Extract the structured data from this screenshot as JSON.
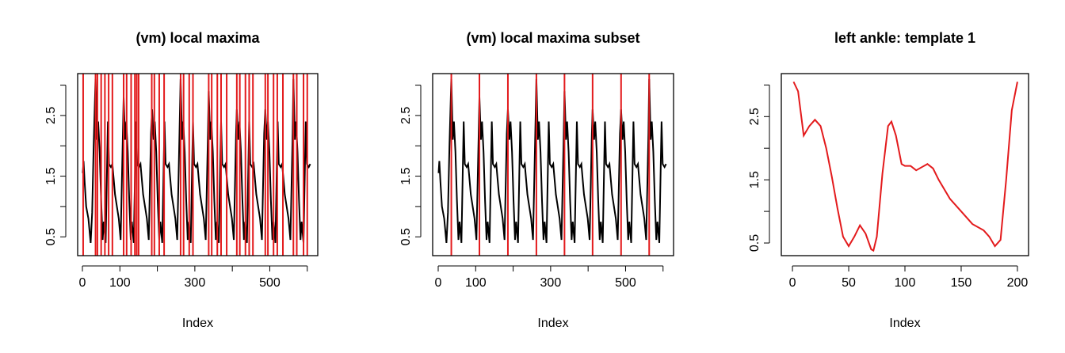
{
  "chart_data": [
    {
      "type": "line",
      "title": "(vm) local maxima",
      "xlabel": "Index",
      "color": "#000000",
      "x": [
        1,
        3,
        6,
        10,
        16,
        22,
        26,
        30,
        35,
        39,
        42,
        46,
        50,
        54,
        57,
        62,
        68,
        71,
        76,
        80,
        87,
        97,
        102,
        108,
        110,
        114,
        117,
        121,
        125,
        129,
        132,
        137,
        143,
        146,
        151,
        155,
        162,
        172,
        177,
        183,
        186,
        190,
        193,
        197,
        201,
        205,
        208,
        213,
        219,
        222,
        227,
        231,
        238,
        248,
        253,
        259,
        262,
        266,
        269,
        273,
        277,
        281,
        284,
        289,
        295,
        298,
        303,
        307,
        314,
        324,
        329,
        335,
        337,
        341,
        344,
        348,
        352,
        356,
        359,
        364,
        370,
        373,
        378,
        382,
        389,
        399,
        404,
        410,
        412,
        416,
        419,
        423,
        427,
        431,
        434,
        439,
        445,
        448,
        453,
        457,
        464,
        474,
        479,
        485,
        488,
        492,
        495,
        499,
        503,
        507,
        510,
        515,
        521,
        524,
        529,
        533,
        540,
        550,
        555,
        561,
        563,
        567,
        570,
        574,
        578,
        582,
        585,
        590,
        596,
        599,
        604,
        608
      ],
      "values": [
        1.55,
        1.75,
        1.4,
        1.0,
        0.8,
        0.4,
        0.9,
        2.0,
        3.1,
        2.1,
        2.4,
        1.9,
        1.1,
        0.45,
        0.75,
        0.4,
        2.4,
        1.7,
        1.65,
        1.7,
        1.2,
        0.8,
        0.45,
        2.2,
        2.8,
        2.1,
        2.4,
        1.9,
        1.1,
        0.45,
        0.75,
        0.4,
        2.4,
        1.7,
        1.65,
        1.7,
        1.2,
        0.8,
        0.45,
        2.2,
        2.6,
        2.1,
        2.4,
        1.9,
        1.1,
        0.45,
        0.75,
        0.4,
        2.4,
        1.7,
        1.65,
        1.7,
        1.2,
        0.8,
        0.45,
        2.2,
        3.1,
        2.1,
        2.4,
        1.9,
        1.1,
        0.45,
        0.75,
        0.4,
        2.4,
        1.7,
        1.65,
        1.7,
        1.2,
        0.8,
        0.45,
        2.2,
        2.9,
        2.1,
        2.4,
        1.9,
        1.1,
        0.45,
        0.75,
        0.4,
        2.4,
        1.7,
        1.65,
        1.7,
        1.2,
        0.8,
        0.45,
        2.2,
        2.6,
        2.1,
        2.4,
        1.9,
        1.1,
        0.45,
        0.75,
        0.4,
        2.4,
        1.7,
        1.65,
        1.7,
        1.2,
        0.8,
        0.45,
        2.2,
        2.6,
        2.1,
        2.4,
        1.9,
        1.1,
        0.45,
        0.75,
        0.4,
        2.4,
        1.7,
        1.65,
        1.7,
        1.2,
        0.8,
        0.45,
        2.2,
        3.1,
        2.1,
        2.4,
        1.9,
        1.1,
        0.45,
        0.75,
        0.4,
        2.4,
        1.7,
        1.65,
        1.7
      ],
      "xlim": [
        -12.7,
        628
      ],
      "ylim": [
        0.19,
        3.19
      ],
      "xticks": [
        0,
        100,
        300,
        500
      ],
      "xticks_minor": [
        200,
        400,
        600
      ],
      "yticks": [
        0.5,
        1.5,
        2.5
      ],
      "yticks_minor": [
        1,
        2,
        3
      ],
      "vlines": [
        2,
        35,
        40,
        50,
        60,
        70,
        80,
        110,
        118,
        130,
        140,
        145,
        150,
        185,
        192,
        205,
        218,
        262,
        270,
        285,
        295,
        337,
        345,
        360,
        370,
        385,
        412,
        420,
        435,
        445,
        455,
        488,
        495,
        510,
        520,
        535,
        563,
        572,
        590,
        600
      ],
      "vline_color": "#e31a1c"
    },
    {
      "type": "line",
      "title": "(vm) local maxima subset",
      "xlabel": "Index",
      "color": "#000000",
      "x": [
        1,
        3,
        6,
        10,
        16,
        22,
        26,
        30,
        35,
        39,
        42,
        46,
        50,
        54,
        57,
        62,
        68,
        71,
        76,
        80,
        87,
        97,
        102,
        108,
        110,
        114,
        117,
        121,
        125,
        129,
        132,
        137,
        143,
        146,
        151,
        155,
        162,
        172,
        177,
        183,
        186,
        190,
        193,
        197,
        201,
        205,
        208,
        213,
        219,
        222,
        227,
        231,
        238,
        248,
        253,
        259,
        262,
        266,
        269,
        273,
        277,
        281,
        284,
        289,
        295,
        298,
        303,
        307,
        314,
        324,
        329,
        335,
        337,
        341,
        344,
        348,
        352,
        356,
        359,
        364,
        370,
        373,
        378,
        382,
        389,
        399,
        404,
        410,
        412,
        416,
        419,
        423,
        427,
        431,
        434,
        439,
        445,
        448,
        453,
        457,
        464,
        474,
        479,
        485,
        488,
        492,
        495,
        499,
        503,
        507,
        510,
        515,
        521,
        524,
        529,
        533,
        540,
        550,
        555,
        561,
        563,
        567,
        570,
        574,
        578,
        582,
        585,
        590,
        596,
        599,
        604,
        608
      ],
      "values": [
        1.55,
        1.75,
        1.4,
        1.0,
        0.8,
        0.4,
        0.9,
        2.0,
        3.1,
        2.1,
        2.4,
        1.9,
        1.1,
        0.45,
        0.75,
        0.4,
        2.4,
        1.7,
        1.65,
        1.7,
        1.2,
        0.8,
        0.45,
        2.2,
        2.8,
        2.1,
        2.4,
        1.9,
        1.1,
        0.45,
        0.75,
        0.4,
        2.4,
        1.7,
        1.65,
        1.7,
        1.2,
        0.8,
        0.45,
        2.2,
        2.6,
        2.1,
        2.4,
        1.9,
        1.1,
        0.45,
        0.75,
        0.4,
        2.4,
        1.7,
        1.65,
        1.7,
        1.2,
        0.8,
        0.45,
        2.2,
        3.1,
        2.1,
        2.4,
        1.9,
        1.1,
        0.45,
        0.75,
        0.4,
        2.4,
        1.7,
        1.65,
        1.7,
        1.2,
        0.8,
        0.45,
        2.2,
        2.9,
        2.1,
        2.4,
        1.9,
        1.1,
        0.45,
        0.75,
        0.4,
        2.4,
        1.7,
        1.65,
        1.7,
        1.2,
        0.8,
        0.45,
        2.2,
        2.6,
        2.1,
        2.4,
        1.9,
        1.1,
        0.45,
        0.75,
        0.4,
        2.4,
        1.7,
        1.65,
        1.7,
        1.2,
        0.8,
        0.45,
        2.2,
        2.6,
        2.1,
        2.4,
        1.9,
        1.1,
        0.45,
        0.75,
        0.4,
        2.4,
        1.7,
        1.65,
        1.7,
        1.2,
        0.8,
        0.45,
        2.2,
        3.1,
        2.1,
        2.4,
        1.9,
        1.1,
        0.45,
        0.75,
        0.4,
        2.4,
        1.7,
        1.65,
        1.7
      ],
      "xlim": [
        -14.8,
        628
      ],
      "ylim": [
        0.19,
        3.19
      ],
      "xticks": [
        0,
        100,
        300,
        500
      ],
      "xticks_minor": [
        200,
        400,
        600
      ],
      "yticks": [
        0.5,
        1.5,
        2.5
      ],
      "yticks_minor": [
        1,
        2,
        3
      ],
      "vlines": [
        35,
        110,
        186,
        262,
        337,
        412,
        488,
        563
      ],
      "vline_color": "#e31a1c"
    },
    {
      "type": "line",
      "title": "left ankle: template 1",
      "xlabel": "Index",
      "color": "#e31a1c",
      "x": [
        1,
        5,
        10,
        15,
        20,
        25,
        30,
        35,
        40,
        45,
        50,
        55,
        60,
        65,
        70,
        72,
        75,
        80,
        85,
        88,
        92,
        97,
        100,
        105,
        110,
        115,
        120,
        125,
        130,
        140,
        150,
        160,
        170,
        175,
        180,
        185,
        190,
        195,
        200
      ],
      "values": [
        3.05,
        2.9,
        2.2,
        2.35,
        2.45,
        2.35,
        2.0,
        1.55,
        1.05,
        0.6,
        0.45,
        0.6,
        0.78,
        0.65,
        0.4,
        0.38,
        0.6,
        1.6,
        2.35,
        2.42,
        2.2,
        1.75,
        1.72,
        1.72,
        1.65,
        1.7,
        1.75,
        1.68,
        1.5,
        1.2,
        1.0,
        0.8,
        0.7,
        0.6,
        0.45,
        0.55,
        1.5,
        2.6,
        3.05
      ],
      "xlim": [
        -9.9,
        209.9
      ],
      "ylim": [
        0.3,
        3.18
      ],
      "xticks": [
        0,
        50,
        100,
        150,
        200
      ],
      "yticks": [
        0.5,
        1.5,
        2.5
      ],
      "yticks_minor": [
        1,
        2,
        3
      ]
    }
  ]
}
